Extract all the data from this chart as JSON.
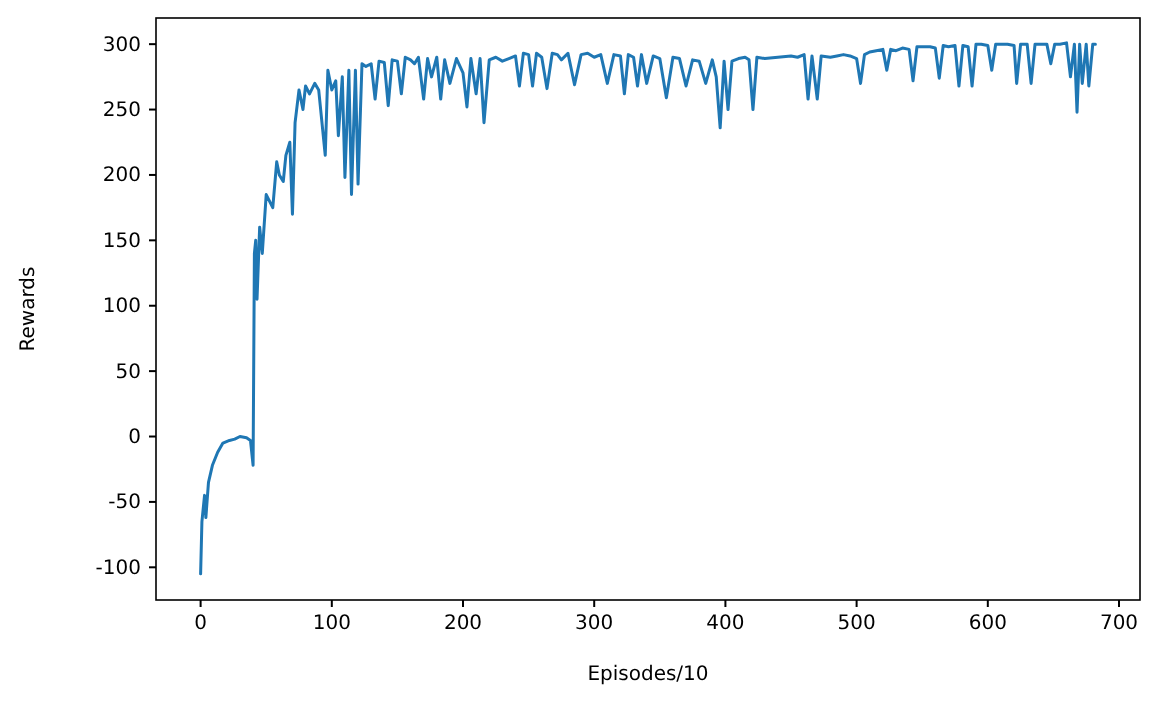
{
  "chart_data": {
    "type": "line",
    "xlabel": "Episodes/10",
    "ylabel": "Rewards",
    "xlim": [
      -34,
      716
    ],
    "ylim": [
      -125,
      320
    ],
    "xticks": [
      0,
      100,
      200,
      300,
      400,
      500,
      600,
      700
    ],
    "yticks": [
      -100,
      -50,
      0,
      50,
      100,
      150,
      200,
      250,
      300
    ],
    "grid": false,
    "marker": "none",
    "line_style": "solid",
    "series": [
      {
        "color": "#1f77b4",
        "x": [
          0,
          1,
          3,
          4,
          6,
          9,
          13,
          17,
          22,
          26,
          30,
          35,
          38,
          40,
          41,
          42,
          43,
          45,
          47,
          50,
          55,
          58,
          60,
          63,
          65,
          68,
          70,
          72,
          75,
          78,
          80,
          83,
          87,
          90,
          95,
          97,
          100,
          103,
          105,
          108,
          110,
          113,
          115,
          118,
          120,
          123,
          126,
          130,
          133,
          136,
          140,
          143,
          146,
          150,
          153,
          156,
          160,
          163,
          166,
          170,
          173,
          176,
          180,
          183,
          186,
          190,
          195,
          200,
          203,
          206,
          210,
          213,
          216,
          220,
          225,
          230,
          235,
          240,
          243,
          246,
          250,
          253,
          256,
          260,
          264,
          268,
          272,
          275,
          280,
          285,
          290,
          295,
          300,
          305,
          310,
          315,
          320,
          323,
          326,
          330,
          333,
          336,
          340,
          345,
          350,
          355,
          360,
          365,
          370,
          375,
          380,
          385,
          390,
          393,
          396,
          399,
          402,
          405,
          410,
          415,
          418,
          421,
          424,
          430,
          440,
          450,
          455,
          460,
          463,
          466,
          470,
          473,
          480,
          485,
          490,
          495,
          500,
          503,
          506,
          510,
          515,
          520,
          523,
          526,
          530,
          535,
          540,
          543,
          546,
          550,
          556,
          560,
          563,
          566,
          570,
          575,
          578,
          581,
          585,
          588,
          591,
          595,
          600,
          603,
          606,
          610,
          615,
          620,
          622,
          625,
          630,
          633,
          636,
          640,
          645,
          648,
          651,
          655,
          660,
          663,
          666,
          668,
          670,
          672,
          675,
          677,
          680,
          682
        ],
        "values": [
          -105,
          -65,
          -45,
          -62,
          -35,
          -22,
          -12,
          -5,
          -3,
          -2,
          0,
          -1,
          -3,
          -22,
          140,
          150,
          105,
          160,
          140,
          185,
          175,
          210,
          200,
          195,
          215,
          225,
          170,
          240,
          265,
          250,
          268,
          262,
          270,
          265,
          215,
          280,
          265,
          272,
          230,
          275,
          198,
          280,
          185,
          280,
          193,
          285,
          283,
          285,
          258,
          287,
          286,
          253,
          288,
          287,
          262,
          290,
          288,
          285,
          290,
          258,
          289,
          275,
          290,
          258,
          288,
          270,
          289,
          278,
          252,
          289,
          262,
          289,
          240,
          288,
          290,
          287,
          289,
          291,
          268,
          293,
          292,
          268,
          293,
          290,
          266,
          293,
          292,
          288,
          293,
          269,
          292,
          293,
          290,
          292,
          270,
          292,
          291,
          262,
          292,
          290,
          268,
          292,
          270,
          291,
          289,
          259,
          290,
          289,
          268,
          288,
          287,
          270,
          288,
          275,
          236,
          287,
          250,
          287,
          289,
          290,
          288,
          250,
          290,
          289,
          290,
          291,
          290,
          292,
          258,
          291,
          258,
          291,
          290,
          291,
          292,
          291,
          289,
          270,
          292,
          294,
          295,
          296,
          280,
          296,
          295,
          297,
          296,
          272,
          298,
          298,
          298,
          297,
          274,
          299,
          298,
          299,
          268,
          299,
          298,
          268,
          300,
          300,
          299,
          280,
          300,
          300,
          300,
          299,
          270,
          300,
          300,
          270,
          300,
          300,
          300,
          285,
          300,
          300,
          301,
          275,
          300,
          248,
          300,
          270,
          300,
          268,
          300,
          300
        ]
      }
    ]
  }
}
